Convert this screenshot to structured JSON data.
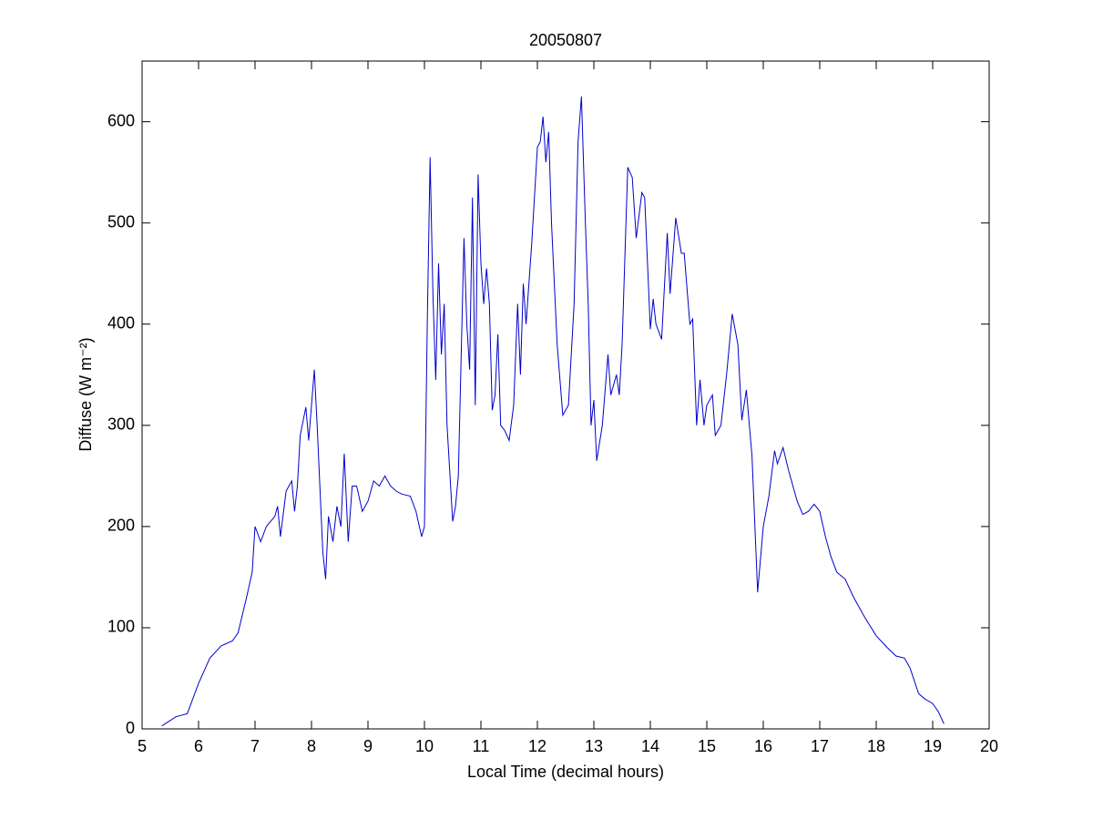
{
  "chart_data": {
    "type": "line",
    "title": "20050807",
    "xlabel": "Local Time (decimal hours)",
    "ylabel": "Diffuse (W m⁻²)",
    "xlim": [
      5,
      20
    ],
    "xticks": [
      5,
      6,
      7,
      8,
      9,
      10,
      11,
      12,
      13,
      14,
      15,
      16,
      17,
      18,
      19,
      20
    ],
    "ylim": [
      0,
      660
    ],
    "yticks": [
      0,
      100,
      200,
      300,
      400,
      500,
      600
    ],
    "grid": false,
    "series": [
      {
        "color": "#0000cc",
        "x": [
          5.35,
          5.6,
          5.8,
          6.0,
          6.2,
          6.4,
          6.6,
          6.7,
          6.85,
          6.95,
          7.0,
          7.1,
          7.2,
          7.35,
          7.4,
          7.45,
          7.55,
          7.65,
          7.7,
          7.75,
          7.8,
          7.9,
          7.95,
          8.05,
          8.1,
          8.2,
          8.25,
          8.3,
          8.38,
          8.45,
          8.52,
          8.58,
          8.65,
          8.72,
          8.8,
          8.9,
          9.0,
          9.1,
          9.2,
          9.3,
          9.4,
          9.5,
          9.6,
          9.75,
          9.85,
          9.95,
          10.0,
          10.05,
          10.1,
          10.15,
          10.2,
          10.25,
          10.3,
          10.35,
          10.4,
          10.5,
          10.55,
          10.6,
          10.7,
          10.75,
          10.8,
          10.85,
          10.9,
          10.95,
          11.0,
          11.05,
          11.1,
          11.15,
          11.2,
          11.25,
          11.3,
          11.35,
          11.42,
          11.5,
          11.58,
          11.65,
          11.7,
          11.75,
          11.8,
          11.9,
          12.0,
          12.05,
          12.1,
          12.15,
          12.2,
          12.25,
          12.35,
          12.45,
          12.55,
          12.65,
          12.72,
          12.78,
          12.85,
          12.9,
          12.95,
          13.0,
          13.05,
          13.15,
          13.25,
          13.3,
          13.4,
          13.45,
          13.5,
          13.6,
          13.68,
          13.75,
          13.85,
          13.9,
          14.0,
          14.05,
          14.1,
          14.2,
          14.3,
          14.35,
          14.45,
          14.55,
          14.6,
          14.7,
          14.75,
          14.82,
          14.88,
          14.95,
          15.0,
          15.1,
          15.15,
          15.25,
          15.35,
          15.45,
          15.55,
          15.62,
          15.7,
          15.8,
          15.9,
          16.0,
          16.1,
          16.2,
          16.25,
          16.35,
          16.45,
          16.6,
          16.7,
          16.8,
          16.9,
          17.0,
          17.1,
          17.2,
          17.3,
          17.45,
          17.6,
          17.8,
          18.0,
          18.2,
          18.35,
          18.5,
          18.6,
          18.75,
          18.85,
          19.0,
          19.1,
          19.2
        ],
        "values": [
          3,
          12,
          15,
          45,
          70,
          82,
          87,
          95,
          130,
          155,
          200,
          185,
          200,
          210,
          220,
          190,
          235,
          245,
          215,
          240,
          290,
          318,
          285,
          355,
          300,
          175,
          148,
          210,
          185,
          220,
          200,
          272,
          185,
          240,
          240,
          215,
          225,
          245,
          240,
          250,
          240,
          235,
          232,
          230,
          215,
          190,
          200,
          400,
          565,
          430,
          345,
          460,
          370,
          420,
          300,
          205,
          220,
          250,
          485,
          400,
          355,
          525,
          320,
          548,
          460,
          420,
          455,
          420,
          315,
          330,
          390,
          300,
          295,
          285,
          320,
          420,
          350,
          440,
          400,
          480,
          575,
          580,
          605,
          560,
          590,
          500,
          380,
          310,
          320,
          420,
          580,
          625,
          500,
          420,
          300,
          325,
          265,
          300,
          370,
          330,
          350,
          330,
          380,
          555,
          545,
          485,
          530,
          525,
          395,
          425,
          400,
          385,
          490,
          430,
          505,
          470,
          470,
          400,
          405,
          300,
          345,
          300,
          320,
          330,
          290,
          300,
          350,
          410,
          380,
          305,
          335,
          270,
          135,
          200,
          230,
          275,
          262,
          278,
          255,
          225,
          212,
          215,
          222,
          215,
          190,
          170,
          155,
          148,
          130,
          110,
          92,
          80,
          72,
          70,
          60,
          35,
          30,
          25,
          17,
          5
        ]
      }
    ]
  }
}
